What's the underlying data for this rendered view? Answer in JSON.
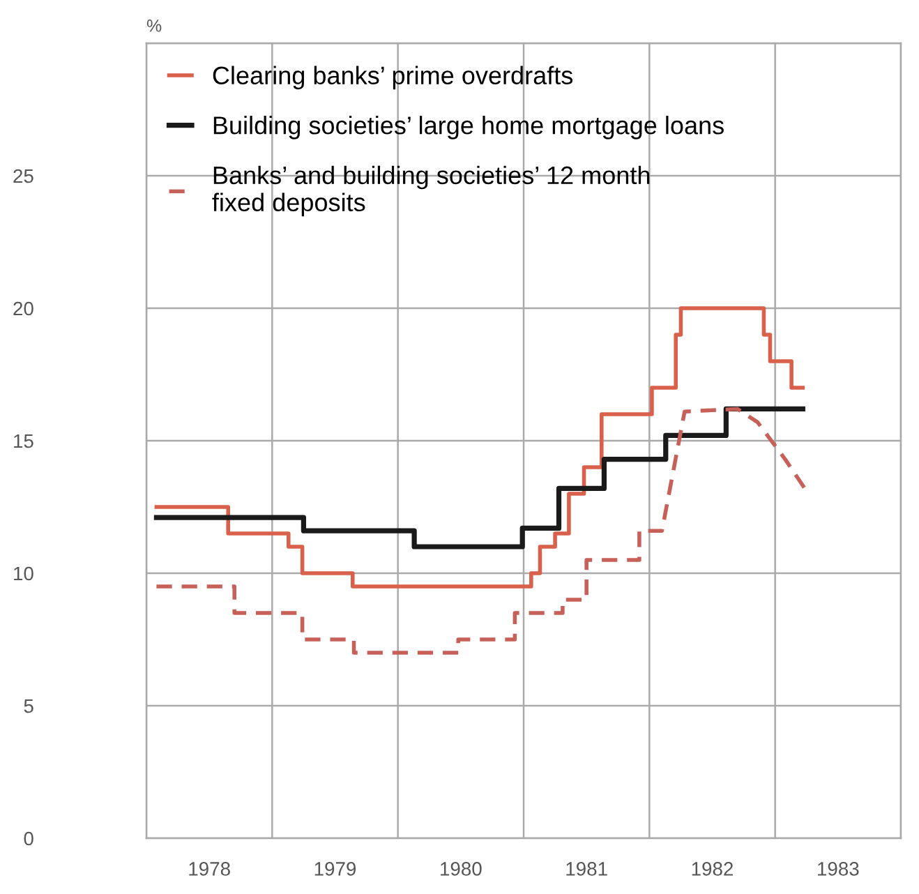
{
  "chart_data": {
    "type": "step",
    "ylabel": "%",
    "xlim": [
      1978,
      1984
    ],
    "ylim": [
      0,
      30
    ],
    "xticks": [
      {
        "value": 1978,
        "label": null
      },
      {
        "value": 1979,
        "label": null
      },
      {
        "value": 1980,
        "label": null
      },
      {
        "value": 1981,
        "label": null
      },
      {
        "value": 1982,
        "label": null
      },
      {
        "value": 1983,
        "label": null
      },
      {
        "value": 1984,
        "label": null
      },
      {
        "value": 1978.5,
        "label": "1978"
      },
      {
        "value": 1979.5,
        "label": "1979"
      },
      {
        "value": 1980.5,
        "label": "1980"
      },
      {
        "value": 1981.5,
        "label": "1981"
      },
      {
        "value": 1982.5,
        "label": "1982"
      },
      {
        "value": 1983.5,
        "label": "1983"
      }
    ],
    "yticks": [
      0,
      5,
      10,
      15,
      20,
      25,
      {
        "value": 30,
        "label": null
      }
    ],
    "grid": true,
    "legend": "top left",
    "series": [
      {
        "name": "Clearing banks’ prime overdrafts",
        "color": "#d9604a",
        "line_style": "solid",
        "x": [
          1978.08,
          1978.65,
          1979.13,
          1979.24,
          1979.64,
          1981.06,
          1981.13,
          1981.25,
          1981.36,
          1981.48,
          1981.62,
          1982.02,
          1982.21,
          1982.25,
          1982.91,
          1982.96,
          1983.13,
          1983.22
        ],
        "values": [
          12.5,
          11.5,
          11.0,
          10.0,
          9.5,
          10.0,
          11.0,
          11.5,
          13.0,
          14.0,
          16.0,
          17.0,
          19.0,
          20.0,
          19.0,
          18.0,
          17.0,
          17.0
        ]
      },
      {
        "name": "Building societies’ large home mortgage loans",
        "color": "#1a1a1a",
        "line_style": "solid",
        "x": [
          1978.08,
          1979.25,
          1980.13,
          1980.99,
          1981.28,
          1981.64,
          1982.13,
          1982.61,
          1983.22
        ],
        "values": [
          12.1,
          11.6,
          11.0,
          11.7,
          13.2,
          14.3,
          15.2,
          16.2,
          16.2
        ]
      },
      {
        "name": "Banks’ and building societies’ 12 month\nfixed deposits",
        "color": "#c8605a",
        "type": "line",
        "line_style": "dashed",
        "x": [
          1978.08,
          1978.7,
          1978.7,
          1979.24,
          1979.24,
          1979.65,
          1979.65,
          1980.48,
          1980.48,
          1980.93,
          1980.93,
          1981.31,
          1981.31,
          1981.5,
          1981.5,
          1981.92,
          1981.92,
          1982.1,
          1982.28,
          1982.7,
          1982.86,
          1983.08,
          1983.25
        ],
        "values": [
          9.5,
          9.5,
          8.5,
          8.5,
          7.5,
          7.5,
          7.0,
          7.0,
          7.5,
          7.5,
          8.5,
          8.5,
          9.0,
          9.0,
          10.5,
          10.5,
          11.6,
          11.6,
          16.1,
          16.2,
          15.7,
          14.3,
          13.1
        ]
      }
    ]
  }
}
